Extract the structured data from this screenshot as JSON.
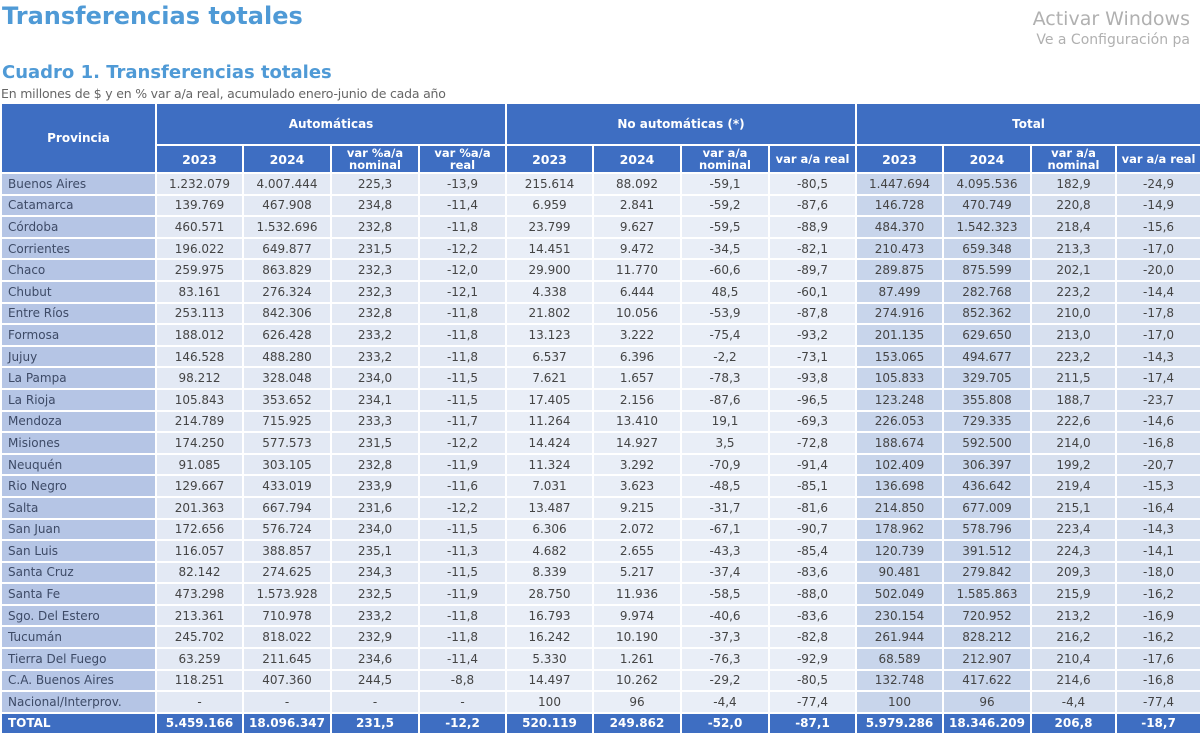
{
  "page_title": "Transferencias totales",
  "cuadro": {
    "title": "Cuadro 1. Transferencias totales",
    "subtitle": "En millones de $ y en % var a/a real, acumulado enero-junio de cada año"
  },
  "header": {
    "provincia": "Provincia",
    "groups": [
      "Automáticas",
      "No automáticas (*)",
      "Total"
    ],
    "columns": [
      "2023",
      "2024",
      "var %a/a nominal",
      "var %a/a real",
      "2023",
      "2024",
      "var a/a nominal",
      "var a/a real",
      "2023",
      "2024",
      "var a/a nominal",
      "var a/a real"
    ]
  },
  "rows": [
    [
      "Buenos Aires",
      "1.232.079",
      "4.007.444",
      "225,3",
      "-13,9",
      "215.614",
      "88.092",
      "-59,1",
      "-80,5",
      "1.447.694",
      "4.095.536",
      "182,9",
      "-24,9"
    ],
    [
      "Catamarca",
      "139.769",
      "467.908",
      "234,8",
      "-11,4",
      "6.959",
      "2.841",
      "-59,2",
      "-87,6",
      "146.728",
      "470.749",
      "220,8",
      "-14,9"
    ],
    [
      "Córdoba",
      "460.571",
      "1.532.696",
      "232,8",
      "-11,8",
      "23.799",
      "9.627",
      "-59,5",
      "-88,9",
      "484.370",
      "1.542.323",
      "218,4",
      "-15,6"
    ],
    [
      "Corrientes",
      "196.022",
      "649.877",
      "231,5",
      "-12,2",
      "14.451",
      "9.472",
      "-34,5",
      "-82,1",
      "210.473",
      "659.348",
      "213,3",
      "-17,0"
    ],
    [
      "Chaco",
      "259.975",
      "863.829",
      "232,3",
      "-12,0",
      "29.900",
      "11.770",
      "-60,6",
      "-89,7",
      "289.875",
      "875.599",
      "202,1",
      "-20,0"
    ],
    [
      "Chubut",
      "83.161",
      "276.324",
      "232,3",
      "-12,1",
      "4.338",
      "6.444",
      "48,5",
      "-60,1",
      "87.499",
      "282.768",
      "223,2",
      "-14,4"
    ],
    [
      "Entre Ríos",
      "253.113",
      "842.306",
      "232,8",
      "-11,8",
      "21.802",
      "10.056",
      "-53,9",
      "-87,8",
      "274.916",
      "852.362",
      "210,0",
      "-17,8"
    ],
    [
      "Formosa",
      "188.012",
      "626.428",
      "233,2",
      "-11,8",
      "13.123",
      "3.222",
      "-75,4",
      "-93,2",
      "201.135",
      "629.650",
      "213,0",
      "-17,0"
    ],
    [
      "Jujuy",
      "146.528",
      "488.280",
      "233,2",
      "-11,8",
      "6.537",
      "6.396",
      "-2,2",
      "-73,1",
      "153.065",
      "494.677",
      "223,2",
      "-14,3"
    ],
    [
      "La Pampa",
      "98.212",
      "328.048",
      "234,0",
      "-11,5",
      "7.621",
      "1.657",
      "-78,3",
      "-93,8",
      "105.833",
      "329.705",
      "211,5",
      "-17,4"
    ],
    [
      "La Rioja",
      "105.843",
      "353.652",
      "234,1",
      "-11,5",
      "17.405",
      "2.156",
      "-87,6",
      "-96,5",
      "123.248",
      "355.808",
      "188,7",
      "-23,7"
    ],
    [
      "Mendoza",
      "214.789",
      "715.925",
      "233,3",
      "-11,7",
      "11.264",
      "13.410",
      "19,1",
      "-69,3",
      "226.053",
      "729.335",
      "222,6",
      "-14,6"
    ],
    [
      "Misiones",
      "174.250",
      "577.573",
      "231,5",
      "-12,2",
      "14.424",
      "14.927",
      "3,5",
      "-72,8",
      "188.674",
      "592.500",
      "214,0",
      "-16,8"
    ],
    [
      "Neuquén",
      "91.085",
      "303.105",
      "232,8",
      "-11,9",
      "11.324",
      "3.292",
      "-70,9",
      "-91,4",
      "102.409",
      "306.397",
      "199,2",
      "-20,7"
    ],
    [
      "Rio Negro",
      "129.667",
      "433.019",
      "233,9",
      "-11,6",
      "7.031",
      "3.623",
      "-48,5",
      "-85,1",
      "136.698",
      "436.642",
      "219,4",
      "-15,3"
    ],
    [
      "Salta",
      "201.363",
      "667.794",
      "231,6",
      "-12,2",
      "13.487",
      "9.215",
      "-31,7",
      "-81,6",
      "214.850",
      "677.009",
      "215,1",
      "-16,4"
    ],
    [
      "San Juan",
      "172.656",
      "576.724",
      "234,0",
      "-11,5",
      "6.306",
      "2.072",
      "-67,1",
      "-90,7",
      "178.962",
      "578.796",
      "223,4",
      "-14,3"
    ],
    [
      "San Luis",
      "116.057",
      "388.857",
      "235,1",
      "-11,3",
      "4.682",
      "2.655",
      "-43,3",
      "-85,4",
      "120.739",
      "391.512",
      "224,3",
      "-14,1"
    ],
    [
      "Santa Cruz",
      "82.142",
      "274.625",
      "234,3",
      "-11,5",
      "8.339",
      "5.217",
      "-37,4",
      "-83,6",
      "90.481",
      "279.842",
      "209,3",
      "-18,0"
    ],
    [
      "Santa Fe",
      "473.298",
      "1.573.928",
      "232,5",
      "-11,9",
      "28.750",
      "11.936",
      "-58,5",
      "-88,0",
      "502.049",
      "1.585.863",
      "215,9",
      "-16,2"
    ],
    [
      "Sgo. Del Estero",
      "213.361",
      "710.978",
      "233,2",
      "-11,8",
      "16.793",
      "9.974",
      "-40,6",
      "-83,6",
      "230.154",
      "720.952",
      "213,2",
      "-16,9"
    ],
    [
      "Tucumán",
      "245.702",
      "818.022",
      "232,9",
      "-11,8",
      "16.242",
      "10.190",
      "-37,3",
      "-82,8",
      "261.944",
      "828.212",
      "216,2",
      "-16,2"
    ],
    [
      "Tierra Del Fuego",
      "63.259",
      "211.645",
      "234,6",
      "-11,4",
      "5.330",
      "1.261",
      "-76,3",
      "-92,9",
      "68.589",
      "212.907",
      "210,4",
      "-17,6"
    ],
    [
      "C.A. Buenos Aires",
      "118.251",
      "407.360",
      "244,5",
      "-8,8",
      "14.497",
      "10.262",
      "-29,2",
      "-80,5",
      "132.748",
      "417.622",
      "214,6",
      "-16,8"
    ],
    [
      "Nacional/Interprov.",
      "-",
      "-",
      "-",
      "-",
      "100",
      "96",
      "-4,4",
      "-77,4",
      "100",
      "96",
      "-4,4",
      "-77,4"
    ]
  ],
  "total_row": [
    "TOTAL",
    "5.459.166",
    "18.096.347",
    "231,5",
    "-12,2",
    "520.119",
    "249.862",
    "-52,0",
    "-87,1",
    "5.979.286",
    "18.346.209",
    "206,8",
    "-18,7"
  ],
  "watermark": {
    "line1": "Activar Windows",
    "line2": "Ve a Configuración pa"
  },
  "colors": {
    "header": "#3e6ec2",
    "title": "#4f9ad6",
    "province_cell": "#b5c5e5",
    "total_cells": "#c8d5eb"
  }
}
